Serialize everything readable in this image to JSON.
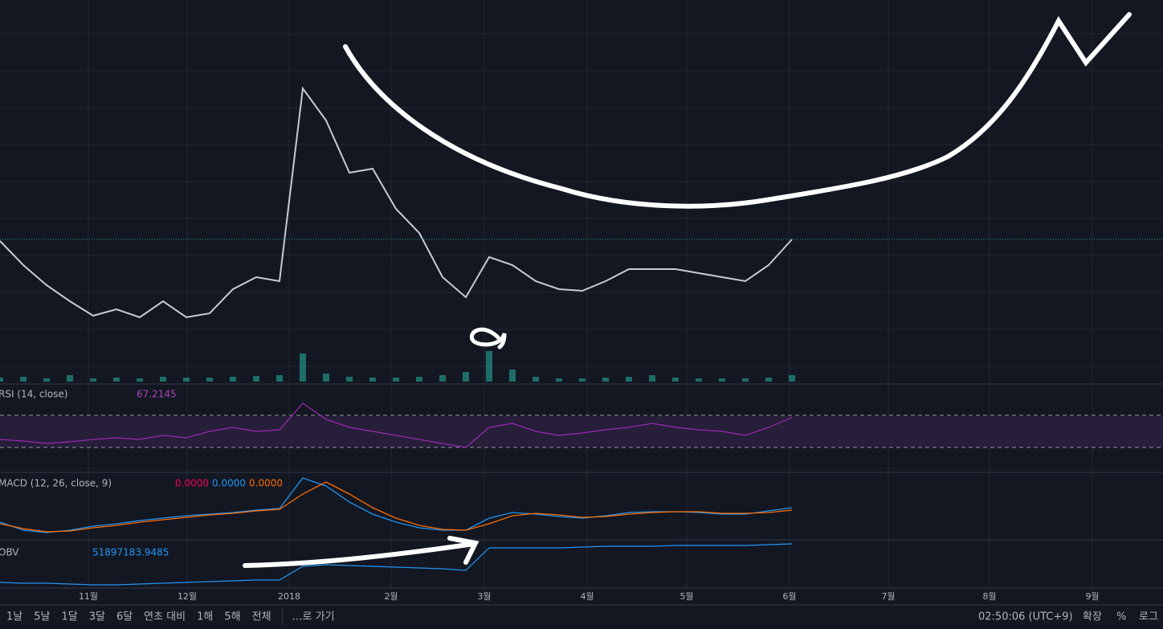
{
  "chart_data": {
    "type": "line",
    "x_labels": [
      "11월",
      "12월",
      "2018",
      "2월",
      "3월",
      "4월",
      "5월",
      "6월",
      "7월",
      "8월",
      "9월"
    ],
    "price": {
      "values": [
        175,
        145,
        120,
        100,
        82,
        90,
        80,
        100,
        80,
        85,
        115,
        130,
        125,
        365,
        325,
        260,
        265,
        215,
        185,
        130,
        105,
        155,
        145,
        125,
        115,
        113,
        125,
        140,
        140,
        140,
        135,
        130,
        125,
        145,
        177
      ],
      "ylim": [
        0,
        475
      ],
      "color": "#c8cbd2"
    },
    "volume": {
      "values": [
        5,
        6,
        4,
        8,
        4,
        5,
        4,
        6,
        5,
        5,
        6,
        7,
        8,
        35,
        10,
        6,
        5,
        5,
        6,
        8,
        12,
        38,
        15,
        6,
        4,
        4,
        5,
        6,
        8,
        5,
        4,
        4,
        4,
        5,
        8
      ],
      "ylim": [
        0,
        475
      ],
      "color": "#26a69a"
    },
    "rsi": {
      "label": "RSI (14, close)",
      "value_text": "67.2145",
      "values": [
        40,
        38,
        35,
        37,
        40,
        42,
        40,
        45,
        42,
        50,
        55,
        50,
        52,
        85,
        65,
        55,
        50,
        45,
        40,
        35,
        30,
        55,
        60,
        50,
        45,
        48,
        52,
        55,
        60,
        55,
        52,
        50,
        45,
        55,
        67.2145
      ],
      "ylim": [
        0,
        100
      ],
      "bands": [
        30,
        70
      ],
      "color": "#9c27b0"
    },
    "macd": {
      "label": "MACD (12, 26, close, 9)",
      "value_texts": [
        "0.0000",
        "0.0000",
        "0.0000"
      ],
      "ylim": [
        0,
        80
      ],
      "series": [
        {
          "color": "#2196f3",
          "values": [
            20,
            10,
            7,
            10,
            15,
            18,
            22,
            25,
            28,
            30,
            32,
            35,
            37,
            75,
            65,
            45,
            30,
            20,
            13,
            10,
            10,
            25,
            32,
            30,
            27,
            25,
            28,
            32,
            33,
            33,
            32,
            30,
            30,
            34,
            38
          ]
        },
        {
          "color": "#ff6d00",
          "values": [
            18,
            12,
            8,
            9,
            13,
            16,
            20,
            23,
            26,
            29,
            31,
            34,
            36,
            55,
            70,
            55,
            38,
            25,
            16,
            11,
            10,
            18,
            28,
            31,
            29,
            26,
            27,
            30,
            32,
            33,
            33,
            31,
            31,
            32,
            35
          ]
        }
      ]
    },
    "obv": {
      "label": "OBV",
      "value_text": "51897183.9485",
      "values": [
        25,
        24,
        24,
        23,
        22,
        22,
        23,
        24,
        25,
        26,
        27,
        28,
        28,
        45,
        47,
        46,
        45,
        44,
        43,
        42,
        40,
        68,
        68,
        68,
        68,
        69,
        70,
        70,
        70,
        71,
        71,
        71,
        71,
        72,
        73
      ],
      "ylim": [
        0,
        75
      ],
      "color": "#2196f3"
    }
  },
  "toolbar": {
    "ranges": [
      "1날",
      "5날",
      "1달",
      "3달",
      "6달",
      "연초 대비",
      "1해",
      "5해",
      "전체"
    ],
    "goto": "…로 가기",
    "clock": "02:50:06 (UTC+9)",
    "options": [
      "확장",
      "%",
      "로그"
    ]
  }
}
